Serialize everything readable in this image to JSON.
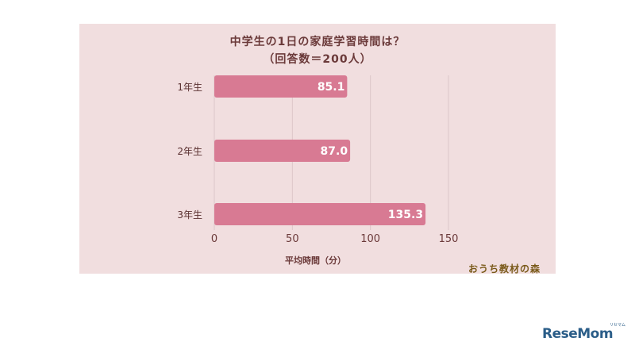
{
  "chart_data": {
    "type": "bar",
    "orientation": "horizontal",
    "title": "中学生の1日の家庭学習時間は？",
    "subtitle": "（回答数＝200人）",
    "categories": [
      "1年生",
      "2年生",
      "3年生"
    ],
    "values": [
      85.1,
      87.0,
      135.3
    ],
    "value_labels": [
      "85.1",
      "87.0",
      "135.3"
    ],
    "xlabel": "平均時間（分）",
    "ylabel": "",
    "xlim": [
      0,
      150
    ],
    "xticks": [
      "0",
      "50",
      "100",
      "150"
    ],
    "grid": true,
    "bar_color": "#d87a93"
  },
  "watermark": "おうち教材の森",
  "logo": "ReseMom",
  "logo_tag": "リセマム"
}
